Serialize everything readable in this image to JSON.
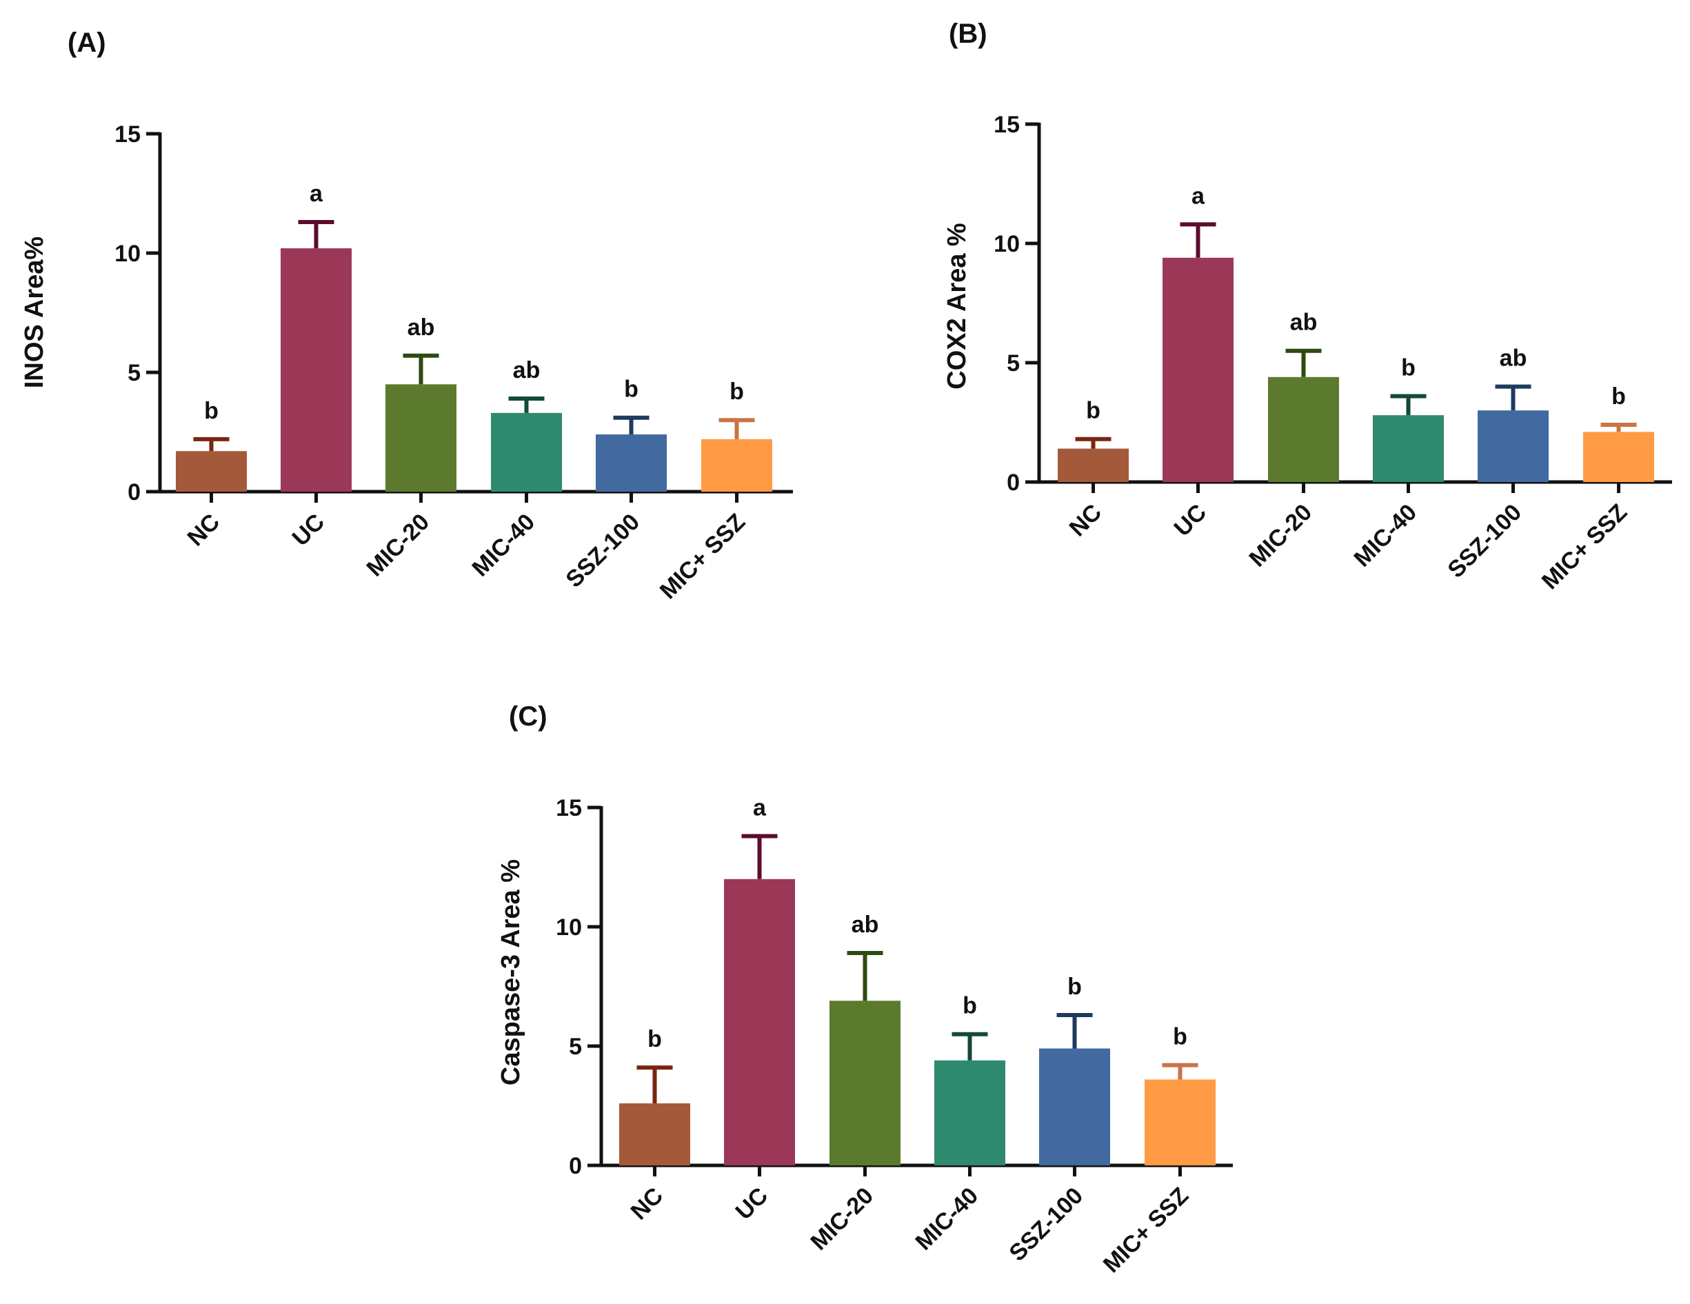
{
  "chart_data": [
    {
      "type": "bar",
      "panel_label": "(A)",
      "ylabel": "INOS Area%",
      "xlabel": "",
      "ylim": [
        0,
        15
      ],
      "yticks": [
        "0",
        "5",
        "10",
        "15"
      ],
      "categories": [
        "NC",
        "UC",
        "MIC-20",
        "MIC-40",
        "SSZ-100",
        "MIC+ SSZ"
      ],
      "values": [
        1.7,
        10.2,
        4.5,
        3.3,
        2.4,
        2.2
      ],
      "errors": [
        0.5,
        1.1,
        1.2,
        0.6,
        0.7,
        0.8
      ],
      "significance": [
        "b",
        "a",
        "ab",
        "ab",
        "b",
        "b"
      ]
    },
    {
      "type": "bar",
      "panel_label": "(B)",
      "ylabel": "COX2 Area %",
      "xlabel": "",
      "ylim": [
        0,
        15
      ],
      "yticks": [
        "0",
        "5",
        "10",
        "15"
      ],
      "categories": [
        "NC",
        "UC",
        "MIC-20",
        "MIC-40",
        "SSZ-100",
        "MIC+ SSZ"
      ],
      "values": [
        1.4,
        9.4,
        4.4,
        2.8,
        3.0,
        2.1
      ],
      "errors": [
        0.4,
        1.4,
        1.1,
        0.8,
        1.0,
        0.3
      ],
      "significance": [
        "b",
        "a",
        "ab",
        "b",
        "ab",
        "b"
      ]
    },
    {
      "type": "bar",
      "panel_label": "(C)",
      "ylabel": "Caspase-3 Area %",
      "xlabel": "",
      "ylim": [
        0,
        15
      ],
      "yticks": [
        "0",
        "5",
        "10",
        "15"
      ],
      "categories": [
        "NC",
        "UC",
        "MIC-20",
        "MIC-40",
        "SSZ-100",
        "MIC+ SSZ"
      ],
      "values": [
        2.6,
        12.0,
        6.9,
        4.4,
        4.9,
        3.6
      ],
      "errors": [
        1.5,
        1.8,
        2.0,
        1.1,
        1.4,
        0.6
      ],
      "significance": [
        "b",
        "a",
        "ab",
        "b",
        "b",
        "b"
      ]
    }
  ],
  "colors": {
    "bars": [
      "#a5593b",
      "#9b3858",
      "#5b7a2e",
      "#2e8a6e",
      "#436aa0",
      "#ff9a45"
    ],
    "error_bars": [
      "#7a2510",
      "#5a0d2e",
      "#2e4a10",
      "#134a3a",
      "#1e3a60",
      "#c87446"
    ],
    "axis": "#111111"
  }
}
